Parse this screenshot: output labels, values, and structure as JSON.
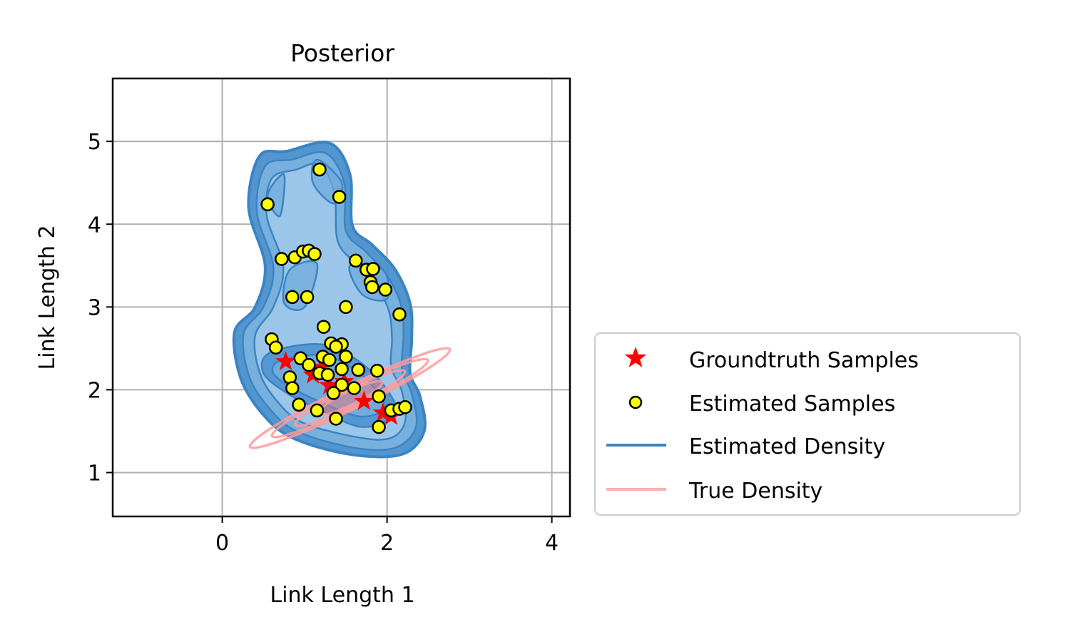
{
  "chart_data": {
    "type": "scatter",
    "title": "Posterior",
    "xlabel": "Link Length 1",
    "ylabel": "Link Length 2",
    "xlim": [
      -1.33,
      4.22
    ],
    "ylim": [
      0.47,
      5.76
    ],
    "xticks": [
      0,
      2,
      4
    ],
    "yticks": [
      1,
      2,
      3,
      4,
      5
    ],
    "grid": true,
    "legend": {
      "placement": "outside-lower-right",
      "entries": [
        {
          "label": "Groundtruth Samples",
          "marker": "star",
          "color": "#ff0000"
        },
        {
          "label": "Estimated Samples",
          "marker": "circle",
          "color": "#ffff00"
        },
        {
          "label": "Estimated Density",
          "marker": "line",
          "color": "#3a84c4"
        },
        {
          "label": "True Density",
          "marker": "line",
          "color": "#ffb0b0"
        }
      ]
    },
    "colors": {
      "density_fill_light": "#c6dbef",
      "density_fill_dark": "#2b7bba",
      "density_line": "#3a84c4",
      "true_density": "#ff9a9a",
      "estimated_marker": "#ffff00",
      "groundtruth_marker": "#ff0000",
      "grid": "#b0b0b0"
    },
    "series": [
      {
        "name": "Groundtruth Samples",
        "points": [
          [
            0.77,
            2.34
          ],
          [
            1.2,
            2.27
          ],
          [
            1.48,
            2.1
          ],
          [
            1.72,
            1.86
          ],
          [
            1.95,
            1.72
          ],
          [
            2.05,
            1.68
          ],
          [
            1.3,
            2.05
          ],
          [
            1.1,
            2.18
          ]
        ]
      },
      {
        "name": "Estimated Samples",
        "points": [
          [
            1.18,
            4.66
          ],
          [
            1.42,
            4.33
          ],
          [
            0.55,
            4.24
          ],
          [
            0.72,
            3.58
          ],
          [
            0.88,
            3.6
          ],
          [
            0.98,
            3.67
          ],
          [
            1.05,
            3.68
          ],
          [
            1.12,
            3.64
          ],
          [
            1.62,
            3.56
          ],
          [
            1.75,
            3.45
          ],
          [
            1.83,
            3.46
          ],
          [
            1.8,
            3.3
          ],
          [
            1.82,
            3.24
          ],
          [
            1.98,
            3.21
          ],
          [
            0.85,
            3.12
          ],
          [
            1.03,
            3.12
          ],
          [
            1.5,
            3.0
          ],
          [
            2.15,
            2.91
          ],
          [
            1.23,
            2.76
          ],
          [
            0.6,
            2.61
          ],
          [
            0.65,
            2.51
          ],
          [
            1.32,
            2.56
          ],
          [
            1.45,
            2.55
          ],
          [
            1.38,
            2.52
          ],
          [
            1.22,
            2.4
          ],
          [
            1.5,
            2.4
          ],
          [
            0.95,
            2.38
          ],
          [
            1.05,
            2.3
          ],
          [
            1.3,
            2.36
          ],
          [
            1.45,
            2.25
          ],
          [
            1.65,
            2.24
          ],
          [
            1.88,
            2.23
          ],
          [
            0.82,
            2.15
          ],
          [
            1.18,
            2.2
          ],
          [
            1.28,
            2.18
          ],
          [
            0.85,
            2.02
          ],
          [
            1.45,
            2.06
          ],
          [
            1.6,
            2.02
          ],
          [
            1.35,
            1.96
          ],
          [
            0.93,
            1.82
          ],
          [
            1.15,
            1.75
          ],
          [
            1.9,
            1.92
          ],
          [
            2.05,
            1.75
          ],
          [
            2.15,
            1.77
          ],
          [
            2.22,
            1.79
          ],
          [
            1.38,
            1.65
          ],
          [
            1.9,
            1.55
          ]
        ]
      }
    ],
    "estimated_density_contours": [
      [
        [
          1.55,
          1.22
        ],
        [
          2.18,
          1.22
        ],
        [
          2.45,
          1.5
        ],
        [
          2.4,
          1.92
        ],
        [
          2.28,
          2.2
        ],
        [
          2.3,
          2.62
        ],
        [
          2.28,
          3.04
        ],
        [
          2.1,
          3.45
        ],
        [
          1.82,
          3.75
        ],
        [
          1.58,
          3.98
        ],
        [
          1.55,
          4.6
        ],
        [
          1.3,
          4.98
        ],
        [
          0.78,
          4.88
        ],
        [
          0.45,
          4.82
        ],
        [
          0.32,
          4.2
        ],
        [
          0.52,
          3.5
        ],
        [
          0.4,
          3.0
        ],
        [
          0.15,
          2.7
        ],
        [
          0.22,
          2.15
        ],
        [
          0.48,
          1.72
        ],
        [
          0.85,
          1.42
        ]
      ],
      [
        [
          1.6,
          1.3
        ],
        [
          2.1,
          1.3
        ],
        [
          2.35,
          1.55
        ],
        [
          2.3,
          1.95
        ],
        [
          2.18,
          2.25
        ],
        [
          2.2,
          2.65
        ],
        [
          2.17,
          3.02
        ],
        [
          2.0,
          3.38
        ],
        [
          1.75,
          3.66
        ],
        [
          1.5,
          3.92
        ],
        [
          1.48,
          4.5
        ],
        [
          1.25,
          4.86
        ],
        [
          0.85,
          4.78
        ],
        [
          0.52,
          4.7
        ],
        [
          0.42,
          4.15
        ],
        [
          0.62,
          3.48
        ],
        [
          0.5,
          3.0
        ],
        [
          0.26,
          2.68
        ],
        [
          0.32,
          2.18
        ],
        [
          0.55,
          1.8
        ],
        [
          0.9,
          1.5
        ]
      ],
      [
        [
          1.68,
          1.42
        ],
        [
          2.05,
          1.42
        ],
        [
          2.22,
          1.62
        ],
        [
          2.18,
          1.98
        ],
        [
          2.05,
          2.28
        ],
        [
          2.06,
          2.62
        ],
        [
          2.02,
          2.96
        ],
        [
          1.86,
          3.26
        ],
        [
          1.62,
          3.52
        ],
        [
          1.4,
          3.8
        ],
        [
          1.36,
          4.38
        ],
        [
          1.18,
          4.72
        ],
        [
          0.9,
          4.66
        ],
        [
          0.6,
          4.55
        ],
        [
          0.54,
          4.1
        ],
        [
          0.74,
          3.48
        ],
        [
          0.62,
          3.0
        ],
        [
          0.4,
          2.66
        ],
        [
          0.45,
          2.22
        ],
        [
          0.65,
          1.88
        ],
        [
          0.98,
          1.6
        ]
      ],
      [
        [
          0.58,
          2.45
        ],
        [
          1.2,
          2.55
        ],
        [
          1.65,
          2.35
        ],
        [
          2.0,
          2.0
        ],
        [
          2.1,
          1.7
        ],
        [
          1.7,
          1.55
        ],
        [
          1.2,
          1.75
        ],
        [
          0.8,
          1.95
        ],
        [
          0.5,
          2.2
        ]
      ],
      [
        [
          0.7,
          2.35
        ],
        [
          1.2,
          2.42
        ],
        [
          1.6,
          2.25
        ],
        [
          1.9,
          1.95
        ],
        [
          1.95,
          1.75
        ],
        [
          1.65,
          1.68
        ],
        [
          1.2,
          1.85
        ],
        [
          0.85,
          2.02
        ],
        [
          0.62,
          2.2
        ]
      ],
      [
        [
          0.82,
          3.45
        ],
        [
          1.15,
          3.52
        ],
        [
          1.0,
          3.0
        ],
        [
          0.75,
          3.05
        ]
      ],
      [
        [
          1.55,
          3.5
        ],
        [
          1.95,
          3.45
        ],
        [
          2.0,
          3.1
        ],
        [
          1.7,
          3.15
        ]
      ],
      [
        [
          0.55,
          4.35
        ],
        [
          0.75,
          4.6
        ],
        [
          0.7,
          4.1
        ]
      ],
      [
        [
          1.15,
          4.78
        ],
        [
          1.45,
          4.5
        ],
        [
          1.35,
          4.25
        ],
        [
          1.1,
          4.5
        ]
      ]
    ],
    "true_density_ellipse": {
      "center": [
        1.55,
        1.9
      ],
      "semi_axes": [
        1.35,
        0.14
      ],
      "angle_deg": -26
    }
  }
}
